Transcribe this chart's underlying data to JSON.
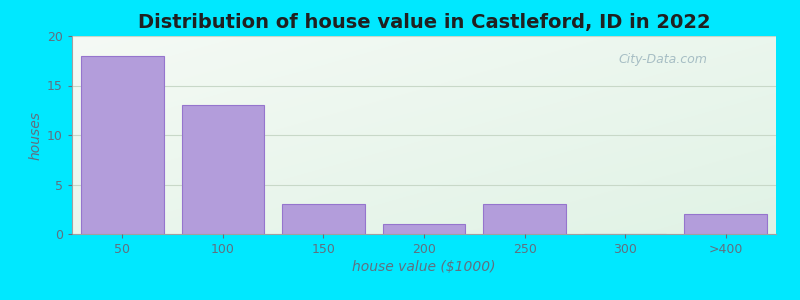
{
  "title": "Distribution of house value in Castleford, ID in 2022",
  "xlabel": "house value ($1000)",
  "ylabel": "houses",
  "categories": [
    "50",
    "100",
    "150",
    "200",
    "250",
    "300",
    ">400"
  ],
  "values": [
    18,
    13,
    3,
    1,
    3,
    0,
    2
  ],
  "bar_color": "#b39ddb",
  "bar_edge_color": "#9575cd",
  "background_color": "#00e8ff",
  "ylim": [
    0,
    20
  ],
  "yticks": [
    0,
    5,
    10,
    15,
    20
  ],
  "title_fontsize": 14,
  "axis_label_fontsize": 10,
  "tick_label_fontsize": 9,
  "watermark_text": "City-Data.com",
  "bar_width": 0.82,
  "text_color": "#607080",
  "grid_color": "#c8d8c8",
  "bg_gradient_tl": [
    0.96,
    0.98,
    0.96
  ],
  "bg_gradient_br": [
    0.88,
    0.95,
    0.9
  ]
}
